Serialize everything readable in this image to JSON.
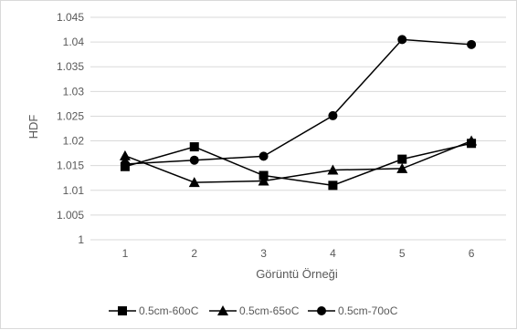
{
  "chart_data": {
    "type": "line",
    "title": "",
    "xlabel": "Görüntü Örneği",
    "ylabel": "HDF",
    "categories": [
      "1",
      "2",
      "3",
      "4",
      "5",
      "6"
    ],
    "ylim": [
      1,
      1.045
    ],
    "yticks": [
      "1",
      "1.005",
      "1.01",
      "1.015",
      "1.02",
      "1.025",
      "1.03",
      "1.035",
      "1.04",
      "1.045"
    ],
    "grid": "horizontal",
    "legend_position": "bottom",
    "series": [
      {
        "name": "0.5cm-60oC",
        "marker": "square",
        "values": [
          1.0148,
          1.0188,
          1.013,
          1.011,
          1.0163,
          1.0195
        ]
      },
      {
        "name": "0.5cm-65oC",
        "marker": "triangle",
        "values": [
          1.017,
          1.0116,
          1.0119,
          1.0141,
          1.0144,
          1.02
        ]
      },
      {
        "name": "0.5cm-70oC",
        "marker": "circle",
        "values": [
          1.0153,
          1.0161,
          1.0169,
          1.0251,
          1.0405,
          1.0395
        ]
      }
    ],
    "colors": {
      "series_line": "#000000",
      "gridline": "#d9d9d9",
      "text": "#595959"
    }
  }
}
